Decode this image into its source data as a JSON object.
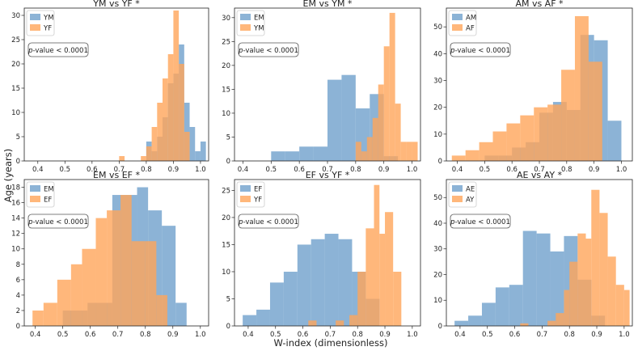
{
  "figure": {
    "ylabel": "Age (years)",
    "xlabel": "W-index (dimensionless)"
  },
  "colors": {
    "series_a": "#6fa0cc",
    "series_b": "#ffa55a",
    "legend_border": "#cccccc"
  },
  "chart_data": [
    {
      "type": "histogram",
      "title": "YM vs YF *",
      "annotation": "p-value < 0.0001",
      "annotation_italic": "p",
      "annotation_rest": "-value < 0.0001",
      "xlim": [
        0.35,
        1.03
      ],
      "ylim": [
        0,
        31.5
      ],
      "xticks": [
        "0.4",
        "0.5",
        "0.6",
        "0.7",
        "0.8",
        "0.9",
        "1.0"
      ],
      "yticks": [
        "0",
        "5",
        "10",
        "15",
        "20",
        "25",
        "30"
      ],
      "legend": [
        "YM",
        "YF"
      ],
      "series": [
        {
          "name": "YM",
          "bins": [
            [
              0.8,
              0.82,
              4
            ],
            [
              0.82,
              0.84,
              2
            ],
            [
              0.84,
              0.86,
              5
            ],
            [
              0.86,
              0.88,
              9
            ],
            [
              0.88,
              0.9,
              16
            ],
            [
              0.9,
              0.92,
              18
            ],
            [
              0.92,
              0.94,
              24
            ],
            [
              0.94,
              0.96,
              12
            ],
            [
              0.96,
              0.98,
              7
            ],
            [
              0.98,
              1.0,
              2
            ],
            [
              1.0,
              1.02,
              4
            ]
          ]
        },
        {
          "name": "YF",
          "bins": [
            [
              0.7,
              0.72,
              1
            ],
            [
              0.78,
              0.8,
              1
            ],
            [
              0.8,
              0.82,
              3
            ],
            [
              0.82,
              0.84,
              7
            ],
            [
              0.84,
              0.86,
              12
            ],
            [
              0.86,
              0.88,
              17
            ],
            [
              0.88,
              0.9,
              22
            ],
            [
              0.9,
              0.92,
              31
            ],
            [
              0.92,
              0.94,
              20
            ],
            [
              0.94,
              0.96,
              6
            ]
          ]
        }
      ]
    },
    {
      "type": "histogram",
      "title": "EM vs YM *",
      "annotation": "p-value < 0.0001",
      "annotation_italic": "p",
      "annotation_rest": "-value < 0.0001",
      "xlim": [
        0.37,
        1.03
      ],
      "ylim": [
        0,
        32
      ],
      "xticks": [
        "0.4",
        "0.5",
        "0.6",
        "0.7",
        "0.8",
        "0.9",
        "1.0"
      ],
      "yticks": [
        "0",
        "5",
        "10",
        "15",
        "20",
        "25",
        "30"
      ],
      "legend": [
        "EM",
        "YM"
      ],
      "series": [
        {
          "name": "EM",
          "bins": [
            [
              0.5,
              0.55,
              2
            ],
            [
              0.55,
              0.6,
              2
            ],
            [
              0.6,
              0.65,
              3
            ],
            [
              0.65,
              0.7,
              3
            ],
            [
              0.7,
              0.75,
              17
            ],
            [
              0.75,
              0.8,
              18
            ],
            [
              0.8,
              0.85,
              11
            ],
            [
              0.85,
              0.9,
              14
            ],
            [
              0.9,
              0.95,
              1
            ]
          ]
        },
        {
          "name": "YM",
          "bins": [
            [
              0.8,
              0.82,
              4
            ],
            [
              0.82,
              0.84,
              2
            ],
            [
              0.84,
              0.86,
              5
            ],
            [
              0.86,
              0.88,
              9
            ],
            [
              0.88,
              0.9,
              16
            ],
            [
              0.9,
              0.92,
              24
            ],
            [
              0.92,
              0.94,
              31
            ],
            [
              0.94,
              0.96,
              12
            ],
            [
              0.96,
              0.98,
              4
            ],
            [
              0.98,
              1.0,
              4
            ],
            [
              1.0,
              1.02,
              4
            ]
          ]
        }
      ]
    },
    {
      "type": "histogram",
      "title": "AM vs AF *",
      "annotation": "p-value < 0.0001",
      "annotation_italic": "p",
      "annotation_rest": "-value < 0.0001",
      "xlim": [
        0.36,
        1.04
      ],
      "ylim": [
        0,
        57
      ],
      "xticks": [
        "0.4",
        "0.5",
        "0.6",
        "0.7",
        "0.8",
        "0.9",
        "1.0"
      ],
      "yticks": [
        "0",
        "10",
        "20",
        "30",
        "40",
        "50"
      ],
      "legend": [
        "AM",
        "AF"
      ],
      "series": [
        {
          "name": "AM",
          "bins": [
            [
              0.5,
              0.55,
              2
            ],
            [
              0.55,
              0.6,
              2
            ],
            [
              0.6,
              0.65,
              5
            ],
            [
              0.65,
              0.7,
              7
            ],
            [
              0.7,
              0.75,
              18
            ],
            [
              0.75,
              0.8,
              22
            ],
            [
              0.8,
              0.85,
              19
            ],
            [
              0.85,
              0.9,
              47
            ],
            [
              0.9,
              0.95,
              45
            ],
            [
              0.95,
              1.0,
              15
            ]
          ]
        },
        {
          "name": "AF",
          "bins": [
            [
              0.38,
              0.43,
              2
            ],
            [
              0.43,
              0.48,
              4
            ],
            [
              0.48,
              0.53,
              7
            ],
            [
              0.53,
              0.58,
              11
            ],
            [
              0.58,
              0.63,
              14
            ],
            [
              0.63,
              0.68,
              17
            ],
            [
              0.68,
              0.73,
              20
            ],
            [
              0.73,
              0.78,
              21
            ],
            [
              0.78,
              0.83,
              34
            ],
            [
              0.83,
              0.88,
              54
            ],
            [
              0.88,
              0.93,
              37
            ]
          ]
        }
      ]
    },
    {
      "type": "histogram",
      "title": "EM vs EF *",
      "annotation": "p-value < 0.0001",
      "annotation_italic": "p",
      "annotation_rest": "-value < 0.0001",
      "xlim": [
        0.36,
        1.03
      ],
      "ylim": [
        0,
        19
      ],
      "xticks": [
        "0.4",
        "0.5",
        "0.6",
        "0.7",
        "0.8",
        "0.9",
        "1.0"
      ],
      "yticks": [
        "0",
        "2",
        "4",
        "6",
        "8",
        "10",
        "12",
        "14",
        "16",
        "18"
      ],
      "legend": [
        "EM",
        "EF"
      ],
      "series": [
        {
          "name": "EM",
          "bins": [
            [
              0.5,
              0.59,
              2
            ],
            [
              0.59,
              0.68,
              3
            ],
            [
              0.68,
              0.77,
              17
            ],
            [
              0.77,
              0.81,
              18
            ],
            [
              0.81,
              0.86,
              15
            ],
            [
              0.86,
              0.91,
              13
            ],
            [
              0.91,
              0.95,
              3
            ]
          ]
        },
        {
          "name": "EF",
          "bins": [
            [
              0.39,
              0.43,
              2
            ],
            [
              0.43,
              0.48,
              3
            ],
            [
              0.48,
              0.53,
              6
            ],
            [
              0.53,
              0.57,
              8
            ],
            [
              0.57,
              0.62,
              10
            ],
            [
              0.62,
              0.66,
              14
            ],
            [
              0.66,
              0.71,
              15
            ],
            [
              0.71,
              0.75,
              17
            ],
            [
              0.75,
              0.8,
              11
            ],
            [
              0.8,
              0.84,
              11
            ],
            [
              0.84,
              0.88,
              4
            ]
          ]
        }
      ]
    },
    {
      "type": "histogram",
      "title": "EF vs YF *",
      "annotation": "p-value < 0.0001",
      "annotation_italic": "p",
      "annotation_rest": "-value < 0.0001",
      "xlim": [
        0.35,
        1.03
      ],
      "ylim": [
        0,
        27
      ],
      "xticks": [
        "0.4",
        "0.5",
        "0.6",
        "0.7",
        "0.8",
        "0.9",
        "1.0"
      ],
      "yticks": [
        "0",
        "5",
        "10",
        "15",
        "20",
        "25"
      ],
      "legend": [
        "EF",
        "YF"
      ],
      "series": [
        {
          "name": "EF",
          "bins": [
            [
              0.38,
              0.43,
              2
            ],
            [
              0.43,
              0.48,
              3
            ],
            [
              0.48,
              0.53,
              8
            ],
            [
              0.53,
              0.58,
              10
            ],
            [
              0.58,
              0.63,
              15
            ],
            [
              0.63,
              0.68,
              16
            ],
            [
              0.68,
              0.73,
              17
            ],
            [
              0.73,
              0.78,
              16
            ],
            [
              0.78,
              0.83,
              10
            ],
            [
              0.83,
              0.88,
              5
            ]
          ]
        },
        {
          "name": "YF",
          "bins": [
            [
              0.62,
              0.65,
              1
            ],
            [
              0.72,
              0.75,
              1
            ],
            [
              0.77,
              0.8,
              2
            ],
            [
              0.8,
              0.83,
              10
            ],
            [
              0.83,
              0.86,
              18
            ],
            [
              0.86,
              0.88,
              26
            ],
            [
              0.88,
              0.9,
              17
            ],
            [
              0.9,
              0.93,
              21
            ],
            [
              0.93,
              0.96,
              10
            ]
          ]
        }
      ]
    },
    {
      "type": "histogram",
      "title": "AE vs AY *",
      "annotation": "p-value < 0.0001",
      "annotation_italic": "p",
      "annotation_rest": "-value < 0.0001",
      "xlim": [
        0.35,
        1.03
      ],
      "ylim": [
        0,
        57
      ],
      "xticks": [
        "0.4",
        "0.5",
        "0.6",
        "0.7",
        "0.8",
        "0.9",
        "1.0"
      ],
      "yticks": [
        "0",
        "10",
        "20",
        "30",
        "40",
        "50"
      ],
      "legend": [
        "AE",
        "AY"
      ],
      "series": [
        {
          "name": "AE",
          "bins": [
            [
              0.38,
              0.43,
              2
            ],
            [
              0.43,
              0.48,
              4
            ],
            [
              0.48,
              0.53,
              9
            ],
            [
              0.53,
              0.58,
              15
            ],
            [
              0.58,
              0.63,
              16
            ],
            [
              0.63,
              0.68,
              37
            ],
            [
              0.68,
              0.73,
              36
            ],
            [
              0.73,
              0.78,
              29
            ],
            [
              0.78,
              0.83,
              35
            ],
            [
              0.83,
              0.88,
              18
            ],
            [
              0.88,
              0.93,
              4
            ]
          ]
        },
        {
          "name": "AY",
          "bins": [
            [
              0.62,
              0.65,
              1
            ],
            [
              0.72,
              0.75,
              2
            ],
            [
              0.75,
              0.78,
              5
            ],
            [
              0.78,
              0.8,
              14
            ],
            [
              0.8,
              0.83,
              25
            ],
            [
              0.83,
              0.86,
              36
            ],
            [
              0.86,
              0.88,
              34
            ],
            [
              0.88,
              0.91,
              53
            ],
            [
              0.91,
              0.94,
              44
            ],
            [
              0.94,
              0.97,
              27
            ],
            [
              0.97,
              1.0,
              16
            ],
            [
              1.0,
              1.02,
              14
            ]
          ]
        }
      ]
    }
  ]
}
